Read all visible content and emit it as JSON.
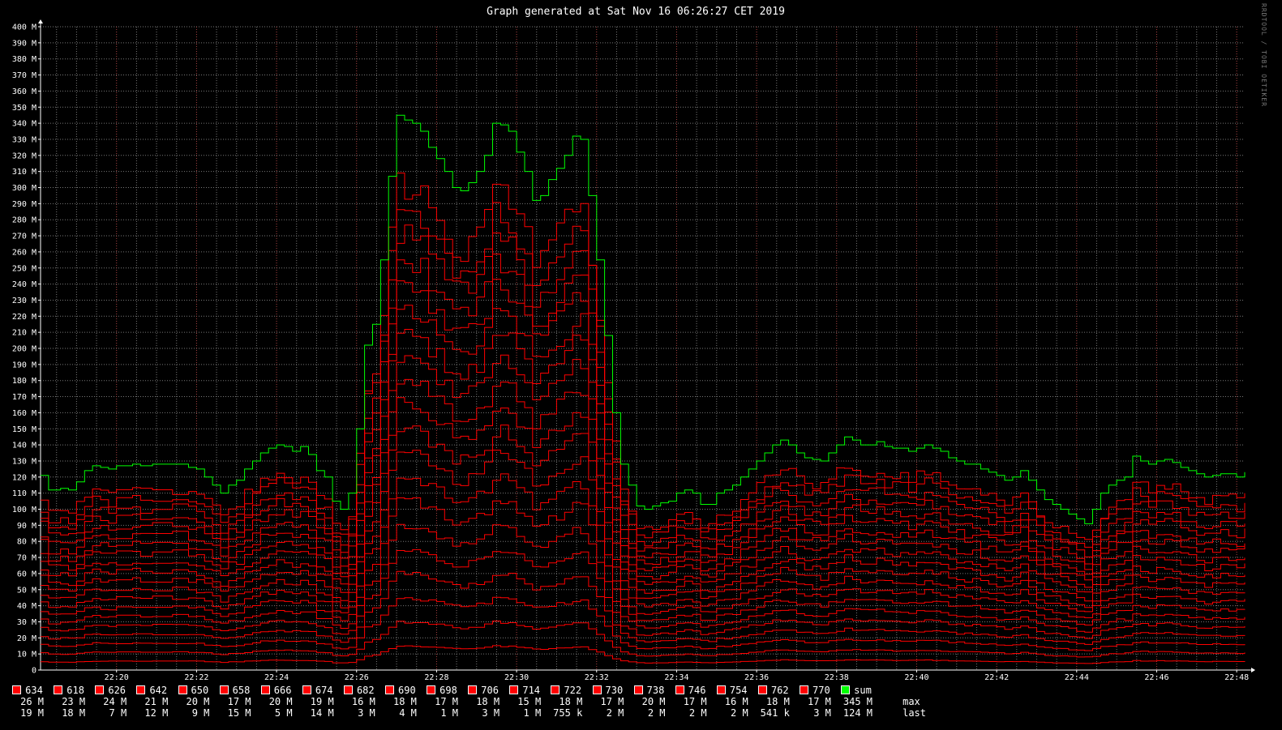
{
  "chart_data": {
    "type": "line",
    "title": "Graph generated at Sat Nov 16 06:26:27 CET 2019",
    "watermark": "RRDTOOL / TOBI OETIKER",
    "ylim": [
      0,
      400
    ],
    "y_ticks": [
      "0",
      "10 M",
      "20 M",
      "30 M",
      "40 M",
      "50 M",
      "60 M",
      "70 M",
      "80 M",
      "90 M",
      "100 M",
      "110 M",
      "120 M",
      "130 M",
      "140 M",
      "150 M",
      "160 M",
      "170 M",
      "180 M",
      "190 M",
      "200 M",
      "210 M",
      "220 M",
      "230 M",
      "240 M",
      "250 M",
      "260 M",
      "270 M",
      "280 M",
      "290 M",
      "300 M",
      "310 M",
      "320 M",
      "330 M",
      "340 M",
      "350 M",
      "360 M",
      "370 M",
      "380 M",
      "390 M",
      "400 M"
    ],
    "x_ticks": [
      "22:20",
      "22:22",
      "22:24",
      "22:26",
      "22:28",
      "22:30",
      "22:32",
      "22:34",
      "22:36",
      "22:38",
      "22:40",
      "22:42",
      "22:44",
      "22:46",
      "22:48"
    ],
    "x_tick_minutes": [
      20,
      22,
      24,
      26,
      28,
      30,
      32,
      34,
      36,
      38,
      40,
      42,
      44,
      46,
      48
    ],
    "xlim_minutes": [
      18.1,
      48.2
    ],
    "grid": true,
    "colors": {
      "series": "#ff0000",
      "sum": "#00ff00",
      "grid": "#777777",
      "axis": "#ffffff",
      "background": "#000000"
    },
    "sum_series": {
      "name": "sum",
      "points": [
        [
          18.1,
          121
        ],
        [
          18.3,
          112
        ],
        [
          18.6,
          113
        ],
        [
          18.8,
          112
        ],
        [
          19.0,
          117
        ],
        [
          19.2,
          124
        ],
        [
          19.4,
          127
        ],
        [
          19.6,
          126
        ],
        [
          19.8,
          125
        ],
        [
          20.0,
          127
        ],
        [
          20.4,
          128
        ],
        [
          20.6,
          127
        ],
        [
          20.9,
          128
        ],
        [
          21.4,
          128
        ],
        [
          21.8,
          126
        ],
        [
          22.0,
          125
        ],
        [
          22.2,
          120
        ],
        [
          22.4,
          115
        ],
        [
          22.6,
          110
        ],
        [
          22.8,
          115
        ],
        [
          23.0,
          118
        ],
        [
          23.2,
          125
        ],
        [
          23.4,
          130
        ],
        [
          23.6,
          135
        ],
        [
          23.8,
          138
        ],
        [
          24.0,
          140
        ],
        [
          24.2,
          139
        ],
        [
          24.4,
          136
        ],
        [
          24.6,
          139
        ],
        [
          24.8,
          134
        ],
        [
          25.0,
          124
        ],
        [
          25.2,
          120
        ],
        [
          25.4,
          105
        ],
        [
          25.6,
          100
        ],
        [
          25.8,
          110
        ],
        [
          26.0,
          150
        ],
        [
          26.2,
          202
        ],
        [
          26.4,
          215
        ],
        [
          26.6,
          255
        ],
        [
          26.8,
          307
        ],
        [
          27.0,
          345
        ],
        [
          27.2,
          342
        ],
        [
          27.4,
          340
        ],
        [
          27.6,
          335
        ],
        [
          27.8,
          325
        ],
        [
          28.0,
          318
        ],
        [
          28.2,
          310
        ],
        [
          28.4,
          300
        ],
        [
          28.6,
          298
        ],
        [
          28.8,
          303
        ],
        [
          29.0,
          310
        ],
        [
          29.2,
          320
        ],
        [
          29.4,
          340
        ],
        [
          29.6,
          339
        ],
        [
          29.8,
          335
        ],
        [
          30.0,
          322
        ],
        [
          30.2,
          310
        ],
        [
          30.4,
          292
        ],
        [
          30.6,
          295
        ],
        [
          30.8,
          305
        ],
        [
          31.0,
          312
        ],
        [
          31.2,
          320
        ],
        [
          31.4,
          332
        ],
        [
          31.6,
          330
        ],
        [
          31.8,
          295
        ],
        [
          32.0,
          255
        ],
        [
          32.2,
          208
        ],
        [
          32.4,
          160
        ],
        [
          32.6,
          128
        ],
        [
          32.8,
          115
        ],
        [
          33.0,
          102
        ],
        [
          33.2,
          100
        ],
        [
          33.4,
          102
        ],
        [
          33.6,
          104
        ],
        [
          33.8,
          105
        ],
        [
          34.0,
          110
        ],
        [
          34.2,
          112
        ],
        [
          34.4,
          110
        ],
        [
          34.6,
          103
        ],
        [
          34.8,
          103
        ],
        [
          35.0,
          110
        ],
        [
          35.2,
          112
        ],
        [
          35.4,
          115
        ],
        [
          35.6,
          120
        ],
        [
          35.8,
          125
        ],
        [
          36.0,
          130
        ],
        [
          36.2,
          135
        ],
        [
          36.4,
          140
        ],
        [
          36.6,
          143
        ],
        [
          36.8,
          140
        ],
        [
          37.0,
          135
        ],
        [
          37.2,
          132
        ],
        [
          37.4,
          131
        ],
        [
          37.6,
          130
        ],
        [
          37.8,
          135
        ],
        [
          38.0,
          140
        ],
        [
          38.2,
          145
        ],
        [
          38.4,
          143
        ],
        [
          38.6,
          140
        ],
        [
          38.8,
          140
        ],
        [
          39.0,
          142
        ],
        [
          39.2,
          139
        ],
        [
          39.4,
          138
        ],
        [
          39.6,
          138
        ],
        [
          39.8,
          136
        ],
        [
          40.0,
          138
        ],
        [
          40.2,
          140
        ],
        [
          40.4,
          138
        ],
        [
          40.6,
          136
        ],
        [
          40.8,
          132
        ],
        [
          41.0,
          130
        ],
        [
          41.2,
          128
        ],
        [
          41.4,
          128
        ],
        [
          41.6,
          125
        ],
        [
          41.8,
          123
        ],
        [
          42.0,
          121
        ],
        [
          42.2,
          118
        ],
        [
          42.4,
          120
        ],
        [
          42.6,
          124
        ],
        [
          42.8,
          118
        ],
        [
          43.0,
          112
        ],
        [
          43.2,
          106
        ],
        [
          43.4,
          103
        ],
        [
          43.6,
          100
        ],
        [
          43.8,
          97
        ],
        [
          44.0,
          94
        ],
        [
          44.2,
          91
        ],
        [
          44.4,
          100
        ],
        [
          44.6,
          110
        ],
        [
          44.8,
          115
        ],
        [
          45.0,
          118
        ],
        [
          45.2,
          120
        ],
        [
          45.4,
          133
        ],
        [
          45.6,
          130
        ],
        [
          45.8,
          128
        ],
        [
          46.0,
          130
        ],
        [
          46.2,
          131
        ],
        [
          46.4,
          129
        ],
        [
          46.6,
          126
        ],
        [
          46.8,
          124
        ],
        [
          47.0,
          122
        ],
        [
          47.2,
          120
        ],
        [
          47.4,
          121
        ],
        [
          47.6,
          122
        ],
        [
          47.8,
          122
        ],
        [
          48.0,
          120
        ],
        [
          48.2,
          123
        ]
      ]
    },
    "legend": [
      {
        "name": "634",
        "max": "26 M",
        "last": "19 M"
      },
      {
        "name": "618",
        "max": "23 M",
        "last": "18 M"
      },
      {
        "name": "626",
        "max": "24 M",
        "last": "7 M"
      },
      {
        "name": "642",
        "max": "21 M",
        "last": "12 M"
      },
      {
        "name": "650",
        "max": "20 M",
        "last": "9 M"
      },
      {
        "name": "658",
        "max": "17 M",
        "last": "15 M"
      },
      {
        "name": "666",
        "max": "20 M",
        "last": "5 M"
      },
      {
        "name": "674",
        "max": "19 M",
        "last": "14 M"
      },
      {
        "name": "682",
        "max": "16 M",
        "last": "3 M"
      },
      {
        "name": "690",
        "max": "18 M",
        "last": "4 M"
      },
      {
        "name": "698",
        "max": "17 M",
        "last": "1 M"
      },
      {
        "name": "706",
        "max": "18 M",
        "last": "3 M"
      },
      {
        "name": "714",
        "max": "15 M",
        "last": "1 M"
      },
      {
        "name": "722",
        "max": "18 M",
        "last": "755 k"
      },
      {
        "name": "730",
        "max": "17 M",
        "last": "2 M"
      },
      {
        "name": "738",
        "max": "20 M",
        "last": "2 M"
      },
      {
        "name": "746",
        "max": "17 M",
        "last": "2 M"
      },
      {
        "name": "754",
        "max": "16 M",
        "last": "2 M"
      },
      {
        "name": "762",
        "max": "18 M",
        "last": "541 k"
      },
      {
        "name": "770",
        "max": "17 M",
        "last": "3 M"
      },
      {
        "name": "sum",
        "max": "345 M",
        "last": "124 M"
      }
    ],
    "legend_row_labels": [
      "max",
      "last"
    ]
  }
}
